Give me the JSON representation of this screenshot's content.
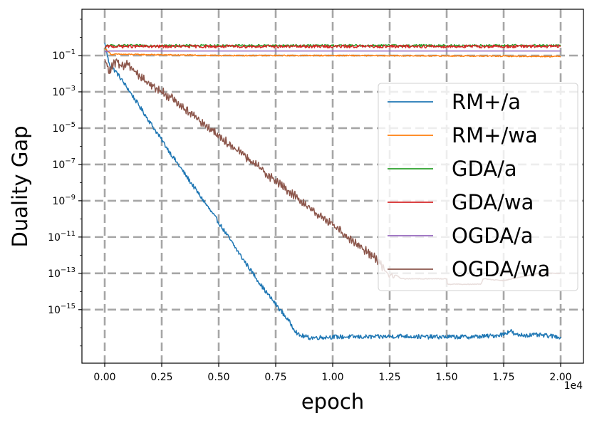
{
  "chart_data": {
    "type": "line",
    "title": "",
    "xlabel": "epoch",
    "ylabel": "Duality Gap",
    "x_offset_label": "1e4",
    "xlim": [
      -0.1,
      2.1
    ],
    "ylim_log10": [
      -17.95,
      1.55
    ],
    "yscale": "log",
    "grid": true,
    "legend_position": "center-right",
    "x_ticks": [
      0.0,
      0.25,
      0.5,
      0.75,
      1.0,
      1.25,
      1.5,
      1.75,
      2.0
    ],
    "x_tick_labels": [
      "0.00",
      "0.25",
      "0.50",
      "0.75",
      "1.00",
      "1.25",
      "1.50",
      "1.75",
      "2.00"
    ],
    "y_ticks_log10": [
      -1,
      -3,
      -5,
      -7,
      -9,
      -11,
      -13,
      -15
    ],
    "y_tick_labels": [
      {
        "base": "10",
        "exp": "−1"
      },
      {
        "base": "10",
        "exp": "−3"
      },
      {
        "base": "10",
        "exp": "−5"
      },
      {
        "base": "10",
        "exp": "−7"
      },
      {
        "base": "10",
        "exp": "−9"
      },
      {
        "base": "10",
        "exp": "−11"
      },
      {
        "base": "10",
        "exp": "−13"
      },
      {
        "base": "10",
        "exp": "−15"
      }
    ],
    "series": [
      {
        "name": "RM+/a",
        "color": "#1f77b4",
        "noise": 0.12,
        "x": [
          0.0,
          0.02,
          0.05,
          0.1,
          0.2,
          0.3,
          0.4,
          0.5,
          0.6,
          0.7,
          0.75,
          0.8,
          0.85,
          0.9,
          1.0,
          1.1,
          1.2,
          1.3,
          1.4,
          1.5,
          1.6,
          1.7,
          1.75,
          1.78,
          1.8,
          1.9,
          2.0
        ],
        "log10_y": [
          -0.3,
          -1.5,
          -1.9,
          -2.8,
          -4.7,
          -6.6,
          -8.4,
          -10.2,
          -12.1,
          -13.9,
          -14.7,
          -15.5,
          -16.4,
          -16.55,
          -16.5,
          -16.5,
          -16.5,
          -16.45,
          -16.5,
          -16.5,
          -16.5,
          -16.45,
          -16.35,
          -16.15,
          -16.4,
          -16.4,
          -16.5
        ]
      },
      {
        "name": "RM+/wa",
        "color": "#ff7f0e",
        "noise": 0.03,
        "x": [
          0.0,
          0.03,
          0.05,
          0.5,
          1.0,
          1.5,
          2.0
        ],
        "log10_y": [
          -0.6,
          -0.95,
          -0.93,
          -1.0,
          -1.0,
          -1.02,
          -1.05
        ]
      },
      {
        "name": "GDA/a",
        "color": "#2ca02c",
        "noise": 0.06,
        "x": [
          0.0,
          0.01,
          0.5,
          1.0,
          1.5,
          2.0
        ],
        "log10_y": [
          -0.6,
          -0.45,
          -0.45,
          -0.45,
          -0.45,
          -0.45
        ]
      },
      {
        "name": "GDA/wa",
        "color": "#d62728",
        "noise": 0.08,
        "x": [
          0.0,
          0.01,
          0.5,
          1.0,
          1.5,
          2.0
        ],
        "log10_y": [
          -0.55,
          -0.5,
          -0.5,
          -0.5,
          -0.5,
          -0.5
        ]
      },
      {
        "name": "OGDA/a",
        "color": "#9467bd",
        "noise": 0.0,
        "x": [
          0.0,
          0.02,
          2.0
        ],
        "log10_y": [
          -0.8,
          -0.75,
          -0.75
        ]
      },
      {
        "name": "OGDA/wa",
        "color": "#8c564b",
        "noise": 0.18,
        "x": [
          0.0,
          0.02,
          0.05,
          0.08,
          0.1,
          0.15,
          0.2,
          0.3,
          0.5,
          0.7,
          0.9,
          1.1,
          1.2,
          1.25,
          1.28,
          1.3,
          1.4,
          1.5,
          1.5001,
          1.6,
          1.65,
          1.66,
          1.7,
          1.75,
          1.9,
          2.0
        ],
        "log10_y": [
          -1.2,
          -1.9,
          -1.3,
          -1.6,
          -1.4,
          -2.1,
          -2.6,
          -3.4,
          -5.4,
          -7.4,
          -9.4,
          -11.3,
          -12.3,
          -13.2,
          -13.1,
          -13.3,
          -13.3,
          -13.3,
          -13.6,
          -13.6,
          -13.6,
          -13.3,
          -13.35,
          -13.4,
          -13.0,
          -13.0
        ]
      }
    ]
  }
}
